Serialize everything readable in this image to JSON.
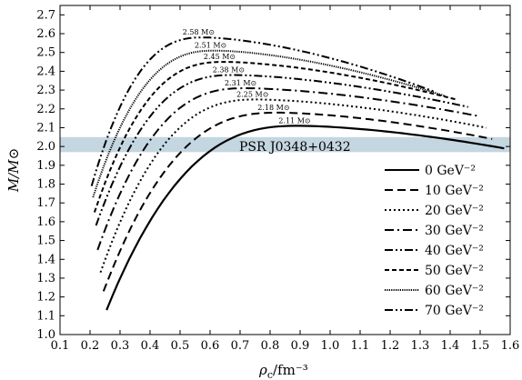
{
  "chart_data": {
    "type": "line",
    "xlabel": "ρc/fm⁻³",
    "xlabel_main": "ρ",
    "xlabel_sub": "c",
    "xlabel_unit": "/fm⁻³",
    "ylabel": "M/M⊙",
    "xlim": [
      0.1,
      1.6
    ],
    "ylim": [
      1.0,
      2.75
    ],
    "x_ticks": [
      "0.1",
      "0.2",
      "0.3",
      "0.4",
      "0.5",
      "0.6",
      "0.7",
      "0.8",
      "0.9",
      "1.0",
      "1.1",
      "1.2",
      "1.3",
      "1.4",
      "1.5",
      "1.6"
    ],
    "y_ticks": [
      "1.0",
      "1.1",
      "1.2",
      "1.3",
      "1.4",
      "1.5",
      "1.6",
      "1.7",
      "1.8",
      "1.9",
      "2.0",
      "2.1",
      "2.2",
      "2.3",
      "2.4",
      "2.5",
      "2.6",
      "2.7"
    ],
    "band": {
      "label": "PSR J0348+0432",
      "y_range": [
        1.97,
        2.05
      ],
      "color": "#c4d6e0"
    },
    "legend_position": "right",
    "series": [
      {
        "name": "0 GeV⁻²",
        "peak_label": "2.11 M⊙",
        "dash": "solid",
        "x0": 0.255,
        "m0": 1.13,
        "xp": 0.9,
        "mp": 2.11,
        "xe": 1.58,
        "me": 1.99
      },
      {
        "name": "10 GeV⁻²",
        "peak_label": "2.18 M⊙",
        "dash": "dashed",
        "x0": 0.245,
        "m0": 1.23,
        "xp": 0.83,
        "mp": 2.18,
        "xe": 1.54,
        "me": 2.04
      },
      {
        "name": "20 GeV⁻²",
        "peak_label": "2.25 M⊙",
        "dash": "dotted",
        "x0": 0.235,
        "m0": 1.33,
        "xp": 0.76,
        "mp": 2.25,
        "xe": 1.52,
        "me": 2.1
      },
      {
        "name": "30 GeV⁻²",
        "peak_label": "2.31 M⊙",
        "dash": "dashdot",
        "x0": 0.225,
        "m0": 1.45,
        "xp": 0.72,
        "mp": 2.31,
        "xe": 1.5,
        "me": 2.16
      },
      {
        "name": "40 GeV⁻²",
        "peak_label": "2.38 M⊙",
        "dash": "dashdotdot",
        "x0": 0.22,
        "m0": 1.58,
        "xp": 0.68,
        "mp": 2.38,
        "xe": 1.46,
        "me": 2.21
      },
      {
        "name": "50 GeV⁻²",
        "peak_label": "2.45 M⊙",
        "dash": "shortdash",
        "x0": 0.215,
        "m0": 1.65,
        "xp": 0.65,
        "mp": 2.45,
        "xe": 1.42,
        "me": 2.25
      },
      {
        "name": "60 GeV⁻²",
        "peak_label": "2.51 M⊙",
        "dash": "densedot",
        "x0": 0.21,
        "m0": 1.73,
        "xp": 0.62,
        "mp": 2.51,
        "xe": 1.38,
        "me": 2.27
      },
      {
        "name": "70 GeV⁻²",
        "peak_label": "2.58 M⊙",
        "dash": "dashdotdot",
        "x0": 0.205,
        "m0": 1.79,
        "xp": 0.58,
        "mp": 2.58,
        "xe": 1.35,
        "me": 2.29
      }
    ]
  }
}
